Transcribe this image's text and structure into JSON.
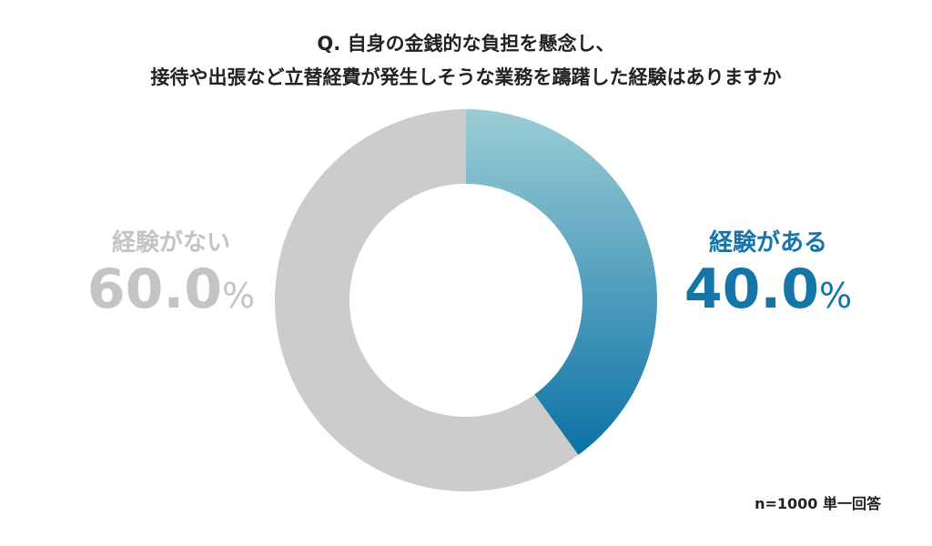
{
  "title_lines": [
    "Q. 自身の金銭的な負担を懸念し、",
    "接待や出張など立替経費が発生しそうな業務を躊躇した経験はありますか"
  ],
  "note": "n=1000 単一回答",
  "colors": {
    "yes_gradient_start": "#9ccdd6",
    "yes_gradient_end": "#0b72a6",
    "no": "#cccccc",
    "yes_label": "#1574a8",
    "no_label": "#c4c4c4"
  },
  "chart_data": {
    "type": "pie",
    "donut": true,
    "start_angle_deg": 0,
    "direction": "clockwise",
    "slices": [
      {
        "label": "経験がある",
        "value": 40.0,
        "display": "40.0",
        "unit": "%"
      },
      {
        "label": "経験がない",
        "value": 60.0,
        "display": "60.0",
        "unit": "%"
      }
    ]
  }
}
